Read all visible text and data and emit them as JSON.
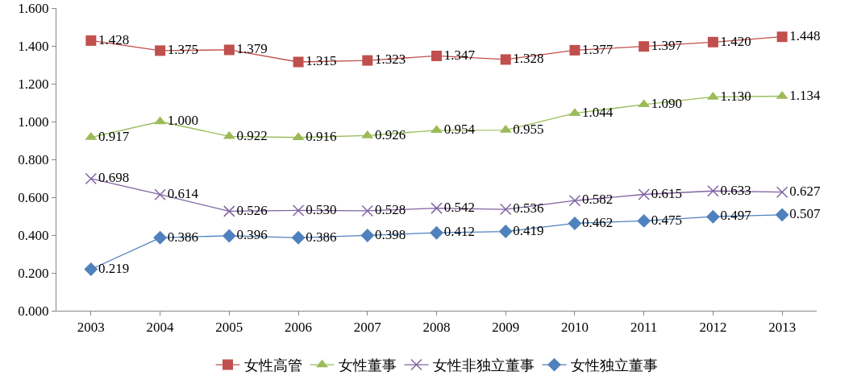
{
  "chart_data": {
    "type": "line",
    "categories": [
      "2003",
      "2004",
      "2005",
      "2006",
      "2007",
      "2008",
      "2009",
      "2010",
      "2011",
      "2012",
      "2013"
    ],
    "series": [
      {
        "name": "女性高管",
        "color": "#c0504d",
        "marker": "square",
        "values": [
          1.428,
          1.375,
          1.379,
          1.315,
          1.323,
          1.347,
          1.328,
          1.377,
          1.397,
          1.42,
          1.448
        ],
        "value_labels": [
          "1.428",
          "1.375",
          "1.379",
          "1.315",
          "1.323",
          "1.347",
          "1.328",
          "1.377",
          "1.397",
          "1.420",
          "1.448"
        ]
      },
      {
        "name": "女性董事",
        "color": "#9bbb59",
        "marker": "triangle",
        "values": [
          0.917,
          1.0,
          0.922,
          0.916,
          0.926,
          0.954,
          0.955,
          1.044,
          1.09,
          1.13,
          1.134
        ],
        "value_labels": [
          "0.917",
          "1.000",
          "0.922",
          "0.916",
          "0.926",
          "0.954",
          "0.955",
          "1.044",
          "1.090",
          "1.130",
          "1.134"
        ]
      },
      {
        "name": "女性非独立董事",
        "color": "#8064a2",
        "marker": "cross",
        "values": [
          0.698,
          0.614,
          0.526,
          0.53,
          0.528,
          0.542,
          0.536,
          0.582,
          0.615,
          0.633,
          0.627
        ],
        "value_labels": [
          "0.698",
          "0.614",
          "0.526",
          "0.530",
          "0.528",
          "0.542",
          "0.536",
          "0.582",
          "0.615",
          "0.633",
          "0.627"
        ]
      },
      {
        "name": "女性独立董事",
        "color": "#4f81bd",
        "marker": "diamond",
        "values": [
          0.219,
          0.386,
          0.396,
          0.386,
          0.398,
          0.412,
          0.419,
          0.462,
          0.475,
          0.497,
          0.507
        ],
        "value_labels": [
          "0.219",
          "0.386",
          "0.396",
          "0.386",
          "0.398",
          "0.412",
          "0.419",
          "0.462",
          "0.475",
          "0.497",
          "0.507"
        ]
      }
    ],
    "ylim": [
      0,
      1.6
    ],
    "yticks": [
      {
        "value": 0,
        "label": "0.000"
      },
      {
        "value": 0.2,
        "label": "0.200"
      },
      {
        "value": 0.4,
        "label": "0.400"
      },
      {
        "value": 0.6,
        "label": "0.600"
      },
      {
        "value": 0.8,
        "label": "0.800"
      },
      {
        "value": 1.0,
        "label": "1.000"
      },
      {
        "value": 1.2,
        "label": "1.200"
      },
      {
        "value": 1.4,
        "label": "1.400"
      },
      {
        "value": 1.6,
        "label": "1.600"
      }
    ],
    "grid": false,
    "legend": "bottom",
    "line_style": "solid"
  }
}
